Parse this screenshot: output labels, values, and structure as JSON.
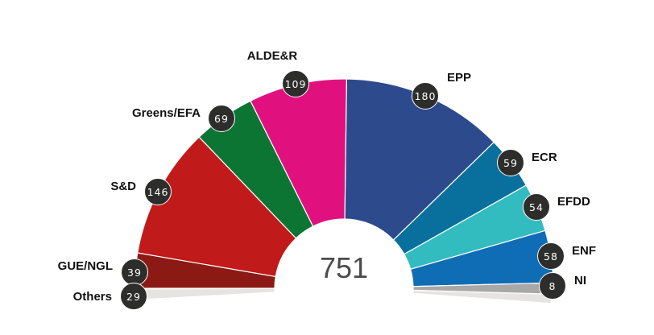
{
  "chart_data": {
    "type": "pie",
    "subtype": "parliament-hemicycle",
    "title": "",
    "total_seats": 751,
    "categories": [
      "Others",
      "GUE/NGL",
      "S&D",
      "Greens/EFA",
      "ALDE&R",
      "EPP",
      "ECR",
      "EFDD",
      "ENF",
      "NI"
    ],
    "values": [
      29,
      39,
      146,
      69,
      109,
      180,
      59,
      54,
      58,
      8
    ],
    "colors": [
      "#e6e4e0",
      "#8b1a14",
      "#c01a1a",
      "#0d7533",
      "#e0117f",
      "#2c4a8c",
      "#09709e",
      "#33bcbf",
      "#0f6db5",
      "#a8a8a8"
    ],
    "center_label": "751",
    "legend": "none (labels beside segments)"
  },
  "total": "751",
  "parties": [
    {
      "name": "GUE/NGL",
      "seats": "39",
      "color": "#8b1a14",
      "badge": [
        167,
        338
      ],
      "label": [
        140,
        331,
        "right"
      ]
    },
    {
      "name": "Others",
      "seats": "29",
      "color": "#e6e4e0",
      "badge": [
        166,
        368
      ],
      "label": [
        139,
        369,
        "right"
      ]
    },
    {
      "name": "S&D",
      "seats": "146",
      "color": "#c01a1a",
      "badge": [
        196,
        238
      ],
      "label": [
        169,
        232,
        "right"
      ]
    },
    {
      "name": "Greens/EFA",
      "seats": "69",
      "color": "#0d7533",
      "badge": [
        275,
        147
      ],
      "label": [
        249,
        141,
        "right"
      ]
    },
    {
      "name": "ALDE&R",
      "seats": "109",
      "color": "#e0117f",
      "badge": [
        367,
        104
      ],
      "label": [
        338,
        70,
        "center"
      ]
    },
    {
      "name": "EPP",
      "seats": "180",
      "color": "#2c4a8c",
      "badge": [
        528,
        119
      ],
      "label": [
        555,
        97,
        "left"
      ]
    },
    {
      "name": "ECR",
      "seats": "59",
      "color": "#09709e",
      "badge": [
        634,
        202
      ],
      "label": [
        660,
        196,
        "left"
      ]
    },
    {
      "name": "EFDD",
      "seats": "54",
      "color": "#33bcbf",
      "badge": [
        666,
        257
      ],
      "label": [
        692,
        251,
        "left"
      ]
    },
    {
      "name": "ENF",
      "seats": "58",
      "color": "#0f6db5",
      "badge": [
        684,
        318
      ],
      "label": [
        710,
        312,
        "left"
      ]
    },
    {
      "name": "NI",
      "seats": "8",
      "color": "#a8a8a8",
      "badge": [
        686,
        355
      ],
      "label": [
        713,
        349,
        "left"
      ]
    }
  ]
}
